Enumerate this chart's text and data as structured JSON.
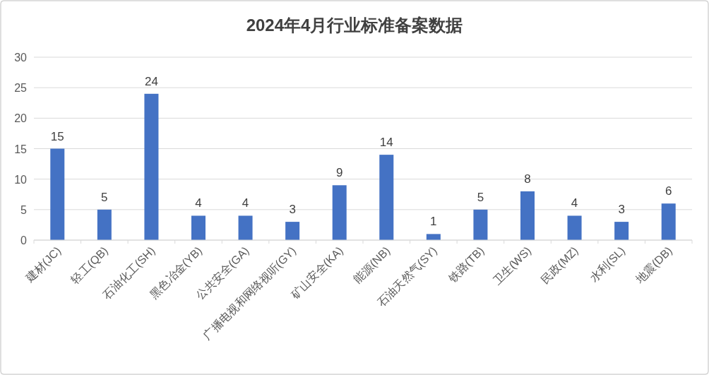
{
  "chart_data": {
    "type": "bar",
    "title": "2024年4月行业标准备案数据",
    "categories": [
      "建材(JC)",
      "轻工(QB)",
      "石油化工(SH)",
      "黑色冶金(YB)",
      "公共安全(GA)",
      "广播电视和网络视听(GY)",
      "矿山安全(KA)",
      "能源(NB)",
      "石油天然气(SY)",
      "铁路(TB)",
      "卫生(WS)",
      "民政(MZ)",
      "水利(SL)",
      "地震(DB)"
    ],
    "values": [
      15,
      5,
      24,
      4,
      4,
      3,
      9,
      14,
      1,
      5,
      8,
      4,
      3,
      6
    ],
    "color": "#4472c4",
    "ylim": [
      0,
      30
    ],
    "yticks": [
      0,
      5,
      10,
      15,
      20,
      25,
      30
    ],
    "grid": "y",
    "data_labels": true
  }
}
